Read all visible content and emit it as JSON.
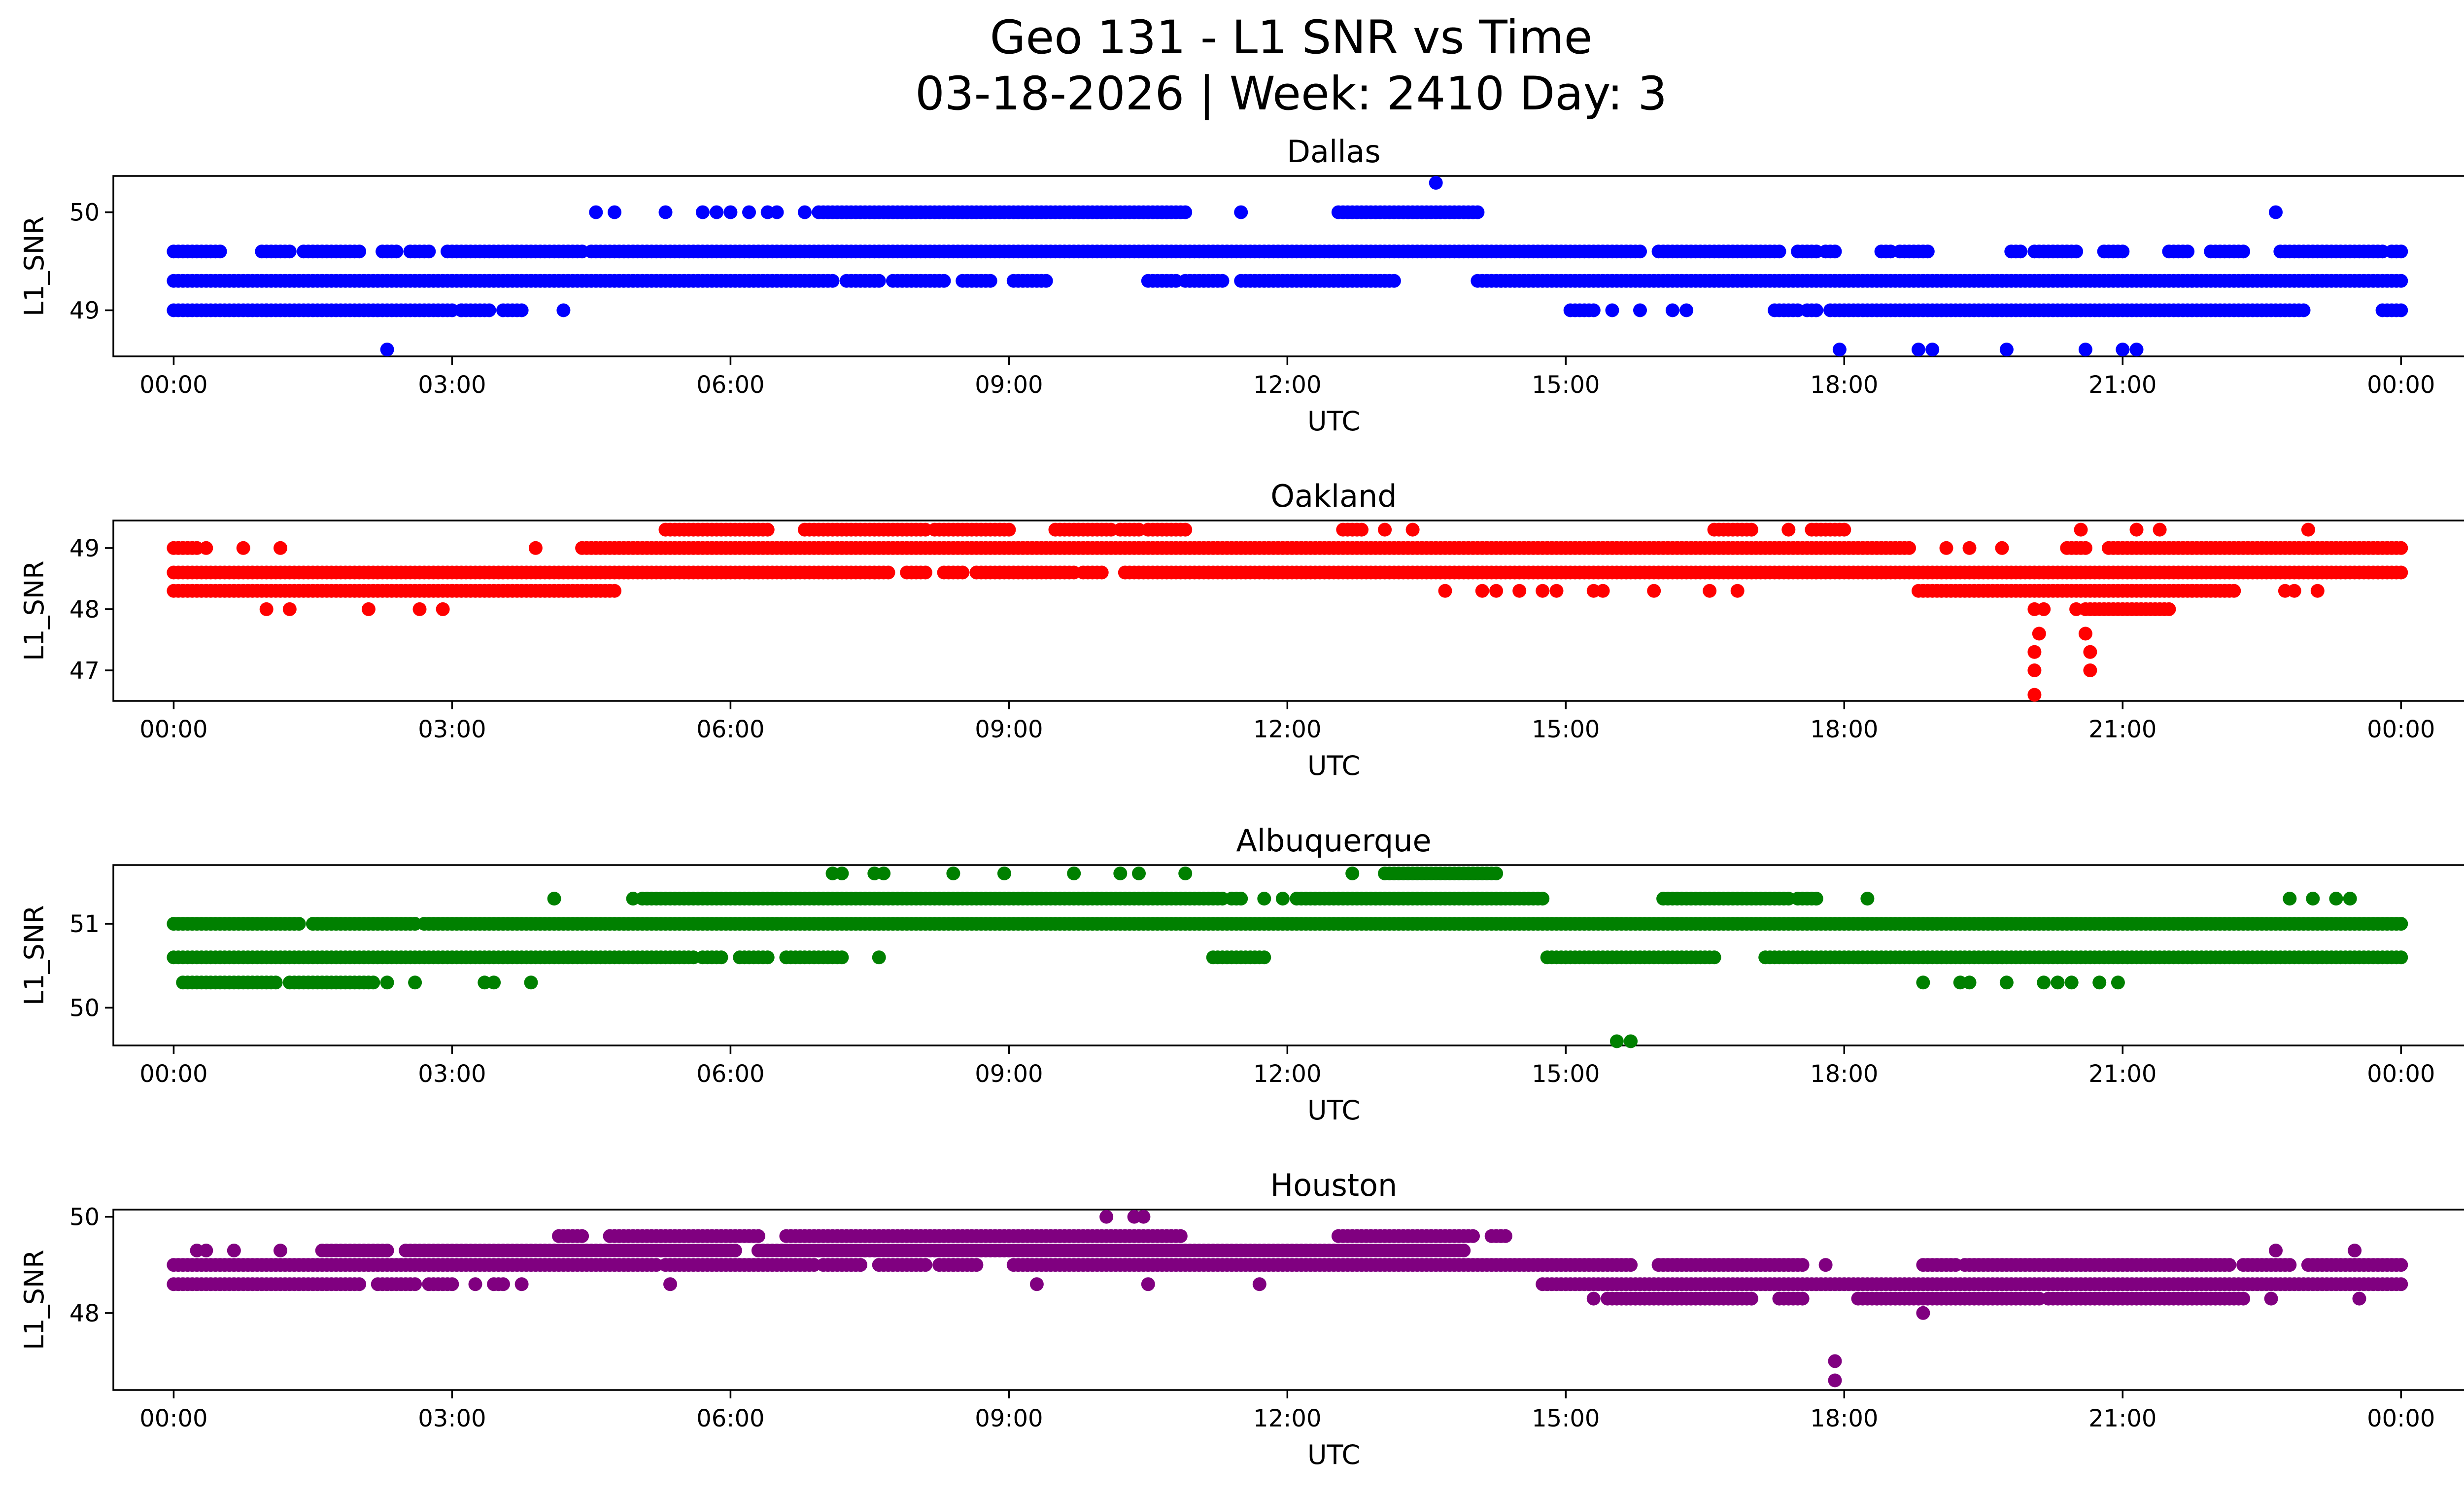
{
  "figure": {
    "title_line1": "Geo 131 - L1 SNR vs Time",
    "title_line2": "03-18-2026 | Week: 2410 Day: 3"
  },
  "chart_data": [
    {
      "type": "scatter",
      "title": "Dallas",
      "xlabel": "UTC",
      "ylabel": "L1_SNR",
      "color": "#0000ff",
      "x_ticks": [
        "00:00",
        "03:00",
        "06:00",
        "09:00",
        "12:00",
        "15:00",
        "18:00",
        "21:00",
        "00:00"
      ],
      "y_ticks": [
        49,
        50
      ],
      "xlim_hours": [
        -0.65,
        25.65
      ],
      "ylim": [
        48.53,
        50.37
      ],
      "series": [
        {
          "y": 49.6,
          "segments": [
            [
              0.0,
              0.5
            ],
            [
              0.95,
              1.25
            ],
            [
              1.4,
              2.0
            ],
            [
              2.25,
              2.4
            ],
            [
              2.55,
              2.75
            ],
            [
              2.95,
              4.4
            ],
            [
              4.5,
              15.8
            ],
            [
              16.0,
              17.3
            ],
            [
              17.5,
              17.7
            ],
            [
              17.8,
              17.9
            ],
            [
              18.4,
              18.5
            ],
            [
              18.6,
              18.9
            ],
            [
              19.8,
              19.9
            ],
            [
              20.05,
              20.3
            ],
            [
              20.35,
              20.5
            ],
            [
              20.8,
              21.0
            ],
            [
              21.5,
              21.7
            ],
            [
              21.95,
              22.3
            ],
            [
              22.7,
              23.8
            ],
            [
              23.9,
              24.0
            ]
          ]
        },
        {
          "y": 49.3,
          "segments": [
            [
              0.0,
              7.1
            ],
            [
              7.25,
              7.6
            ],
            [
              7.75,
              8.3
            ],
            [
              8.5,
              8.8
            ],
            [
              9.05,
              9.4
            ],
            [
              10.5,
              10.8
            ],
            [
              10.9,
              11.3
            ],
            [
              11.5,
              12.7
            ],
            [
              12.75,
              12.85
            ],
            [
              12.9,
              13.0
            ],
            [
              13.05,
              13.15
            ],
            [
              14.05,
              24.0
            ]
          ]
        },
        {
          "y": 49.0,
          "segments": [
            [
              0.0,
              3.0
            ],
            [
              3.1,
              3.4
            ],
            [
              3.55,
              3.7
            ],
            [
              15.05,
              15.3
            ],
            [
              17.25,
              17.5
            ],
            [
              17.6,
              17.7
            ],
            [
              17.85,
              22.9
            ],
            [
              23.8,
              24.0
            ]
          ]
        },
        {
          "y": 50.0,
          "segments": [
            [
              6.95,
              10.9
            ],
            [
              12.55,
              13.0
            ],
            [
              13.05,
              14.05
            ]
          ]
        }
      ],
      "points": [
        [
          1.0,
          49.0
        ],
        [
          3.75,
          49.0
        ],
        [
          4.2,
          49.0
        ],
        [
          3.1,
          49.0
        ],
        [
          15.5,
          49.0
        ],
        [
          15.8,
          49.0
        ],
        [
          16.15,
          49.0
        ],
        [
          16.3,
          49.0
        ],
        [
          22.95,
          49.0
        ],
        [
          4.55,
          50.0
        ],
        [
          4.75,
          50.0
        ],
        [
          5.3,
          50.0
        ],
        [
          5.7,
          50.0
        ],
        [
          5.85,
          50.0
        ],
        [
          6.0,
          50.0
        ],
        [
          6.2,
          50.0
        ],
        [
          6.4,
          50.0
        ],
        [
          6.5,
          50.0
        ],
        [
          6.8,
          50.0
        ],
        [
          11.5,
          50.0
        ],
        [
          22.65,
          50.0
        ],
        [
          13.6,
          50.3
        ],
        [
          2.3,
          48.6
        ],
        [
          17.95,
          48.6
        ],
        [
          18.8,
          48.6
        ],
        [
          18.95,
          48.6
        ],
        [
          19.75,
          48.6
        ],
        [
          20.6,
          48.6
        ],
        [
          21.0,
          48.6
        ],
        [
          21.15,
          48.6
        ]
      ]
    },
    {
      "type": "scatter",
      "title": "Oakland",
      "xlabel": "UTC",
      "ylabel": "L1_SNR",
      "color": "#ff0000",
      "x_ticks": [
        "00:00",
        "03:00",
        "06:00",
        "09:00",
        "12:00",
        "15:00",
        "18:00",
        "21:00",
        "00:00"
      ],
      "y_ticks": [
        47,
        48,
        49
      ],
      "xlim_hours": [
        -0.65,
        25.65
      ],
      "ylim": [
        46.5,
        49.45
      ],
      "series": [
        {
          "y": 48.6,
          "segments": [
            [
              0.0,
              7.7
            ],
            [
              7.9,
              8.1
            ],
            [
              8.3,
              8.5
            ],
            [
              8.65,
              9.2
            ],
            [
              9.25,
              9.7
            ],
            [
              9.8,
              10.0
            ],
            [
              10.25,
              24.0
            ]
          ]
        },
        {
          "y": 48.3,
          "segments": [
            [
              0.0,
              4.75
            ],
            [
              18.8,
              22.2
            ]
          ]
        },
        {
          "y": 49.0,
          "segments": [
            [
              0.0,
              0.25
            ],
            [
              4.4,
              18.7
            ],
            [
              20.4,
              20.6
            ],
            [
              20.85,
              24.0
            ]
          ]
        },
        {
          "y": 49.3,
          "segments": [
            [
              5.3,
              6.4
            ],
            [
              6.8,
              8.1
            ],
            [
              8.2,
              9.0
            ],
            [
              9.5,
              10.1
            ],
            [
              10.2,
              10.4
            ],
            [
              10.5,
              10.9
            ],
            [
              12.6,
              12.8
            ],
            [
              16.6,
              17.0
            ],
            [
              17.65,
              18.0
            ]
          ]
        },
        {
          "y": 48.0,
          "segments": [
            [
              20.6,
              21.5
            ]
          ]
        }
      ],
      "points": [
        [
          0.35,
          49.0
        ],
        [
          0.75,
          49.0
        ],
        [
          1.15,
          49.0
        ],
        [
          3.9,
          49.0
        ],
        [
          19.1,
          49.0
        ],
        [
          19.35,
          49.0
        ],
        [
          19.7,
          49.0
        ],
        [
          1.0,
          48.0
        ],
        [
          1.25,
          48.0
        ],
        [
          2.1,
          48.0
        ],
        [
          2.65,
          48.0
        ],
        [
          2.9,
          48.0
        ],
        [
          20.05,
          48.0
        ],
        [
          20.15,
          48.0
        ],
        [
          20.5,
          48.0
        ],
        [
          13.05,
          49.3
        ],
        [
          13.35,
          49.3
        ],
        [
          17.4,
          49.3
        ],
        [
          20.55,
          49.3
        ],
        [
          21.15,
          49.3
        ],
        [
          21.4,
          49.3
        ],
        [
          23.0,
          49.3
        ],
        [
          13.7,
          48.3
        ],
        [
          14.1,
          48.3
        ],
        [
          14.25,
          48.3
        ],
        [
          14.5,
          48.3
        ],
        [
          14.75,
          48.3
        ],
        [
          14.9,
          48.3
        ],
        [
          15.3,
          48.3
        ],
        [
          15.4,
          48.3
        ],
        [
          15.95,
          48.3
        ],
        [
          16.55,
          48.3
        ],
        [
          16.85,
          48.3
        ],
        [
          22.75,
          48.3
        ],
        [
          22.85,
          48.3
        ],
        [
          23.1,
          48.3
        ],
        [
          20.05,
          47.3
        ],
        [
          20.1,
          47.6
        ],
        [
          20.05,
          47.0
        ],
        [
          20.05,
          46.6
        ],
        [
          20.6,
          47.6
        ],
        [
          20.65,
          47.3
        ],
        [
          20.65,
          47.0
        ]
      ]
    },
    {
      "type": "scatter",
      "title": "Albuquerque",
      "xlabel": "UTC",
      "ylabel": "L1_SNR",
      "color": "#008000",
      "x_ticks": [
        "00:00",
        "03:00",
        "06:00",
        "09:00",
        "12:00",
        "15:00",
        "18:00",
        "21:00",
        "00:00"
      ],
      "y_ticks": [
        50,
        51
      ],
      "xlim_hours": [
        -0.65,
        25.65
      ],
      "ylim": [
        49.55,
        51.7
      ],
      "series": [
        {
          "y": 51.0,
          "segments": [
            [
              0.0,
              0.8
            ],
            [
              0.85,
              1.35
            ],
            [
              1.5,
              1.9
            ],
            [
              1.95,
              2.6
            ],
            [
              2.7,
              3.6
            ],
            [
              3.65,
              24.0
            ]
          ]
        },
        {
          "y": 50.6,
          "segments": [
            [
              0.0,
              5.6
            ],
            [
              5.7,
              5.9
            ],
            [
              6.1,
              6.4
            ],
            [
              6.6,
              6.95
            ],
            [
              7.0,
              7.2
            ],
            [
              11.2,
              11.5
            ],
            [
              11.55,
              11.75
            ],
            [
              14.8,
              16.6
            ],
            [
              17.15,
              24.0
            ]
          ]
        },
        {
          "y": 50.3,
          "segments": [
            [
              0.1,
              1.1
            ],
            [
              1.25,
              2.15
            ]
          ]
        },
        {
          "y": 51.3,
          "segments": [
            [
              5.05,
              11.3
            ],
            [
              11.4,
              11.5
            ],
            [
              12.1,
              14.75
            ],
            [
              16.05,
              17.4
            ],
            [
              17.5,
              17.7
            ]
          ]
        },
        {
          "y": 51.6,
          "segments": [
            [
              13.05,
              14.25
            ]
          ]
        }
      ],
      "points": [
        [
          2.3,
          50.3
        ],
        [
          2.6,
          50.3
        ],
        [
          3.35,
          50.3
        ],
        [
          3.45,
          50.3
        ],
        [
          3.85,
          50.3
        ],
        [
          18.85,
          50.3
        ],
        [
          19.25,
          50.3
        ],
        [
          19.35,
          50.3
        ],
        [
          19.75,
          50.3
        ],
        [
          20.15,
          50.3
        ],
        [
          20.3,
          50.3
        ],
        [
          20.45,
          50.3
        ],
        [
          20.75,
          50.3
        ],
        [
          20.95,
          50.3
        ],
        [
          4.1,
          51.3
        ],
        [
          4.95,
          51.3
        ],
        [
          11.75,
          51.3
        ],
        [
          11.95,
          51.3
        ],
        [
          18.25,
          51.3
        ],
        [
          22.8,
          51.3
        ],
        [
          23.05,
          51.3
        ],
        [
          23.3,
          51.3
        ],
        [
          23.45,
          51.3
        ],
        [
          7.1,
          51.6
        ],
        [
          7.2,
          51.6
        ],
        [
          7.55,
          51.6
        ],
        [
          7.65,
          51.6
        ],
        [
          8.4,
          51.6
        ],
        [
          8.95,
          51.6
        ],
        [
          9.7,
          51.6
        ],
        [
          10.2,
          51.6
        ],
        [
          10.4,
          51.6
        ],
        [
          10.9,
          51.6
        ],
        [
          12.7,
          51.6
        ],
        [
          7.6,
          50.6
        ],
        [
          15.55,
          49.6
        ],
        [
          15.7,
          49.6
        ]
      ]
    },
    {
      "type": "scatter",
      "title": "Houston",
      "xlabel": "UTC",
      "ylabel": "L1_SNR",
      "color": "#800080",
      "x_ticks": [
        "00:00",
        "03:00",
        "06:00",
        "09:00",
        "12:00",
        "15:00",
        "18:00",
        "21:00",
        "00:00"
      ],
      "y_ticks": [
        48,
        50
      ],
      "xlim_hours": [
        -0.65,
        25.65
      ],
      "ylim": [
        46.4,
        50.15
      ],
      "series": [
        {
          "y": 48.6,
          "segments": [
            [
              0.0,
              2.0
            ],
            [
              2.2,
              2.6
            ],
            [
              2.75,
              2.95
            ],
            [
              14.75,
              24.0
            ]
          ]
        },
        {
          "y": 49.0,
          "segments": [
            [
              0.0,
              5.2
            ],
            [
              5.3,
              6.9
            ],
            [
              7.0,
              7.4
            ],
            [
              7.6,
              8.1
            ],
            [
              8.25,
              8.65
            ],
            [
              9.05,
              12.1
            ],
            [
              12.2,
              13.2
            ],
            [
              13.25,
              14.75
            ],
            [
              14.8,
              15.7
            ],
            [
              16.0,
              17.55
            ],
            [
              18.9,
              19.2
            ],
            [
              19.3,
              22.15
            ],
            [
              22.3,
              22.8
            ],
            [
              23.0,
              24.0
            ]
          ]
        },
        {
          "y": 49.3,
          "segments": [
            [
              1.6,
              2.3
            ],
            [
              2.5,
              6.05
            ],
            [
              6.3,
              13.9
            ]
          ]
        },
        {
          "y": 49.6,
          "segments": [
            [
              4.15,
              4.4
            ],
            [
              4.7,
              6.3
            ],
            [
              6.6,
              10.85
            ],
            [
              12.55,
              14.0
            ],
            [
              14.2,
              14.35
            ]
          ]
        },
        {
          "y": 48.3,
          "segments": [
            [
              15.45,
              16.75
            ],
            [
              16.8,
              17.0
            ],
            [
              17.35,
              17.55
            ],
            [
              18.15,
              19.2
            ],
            [
              19.25,
              20.1
            ],
            [
              20.2,
              20.95
            ],
            [
              21.0,
              22.3
            ]
          ]
        }
      ],
      "points": [
        [
          0.25,
          49.3
        ],
        [
          0.35,
          49.3
        ],
        [
          0.65,
          49.3
        ],
        [
          1.15,
          49.3
        ],
        [
          9.3,
          48.6
        ],
        [
          11.7,
          48.6
        ],
        [
          3.0,
          48.6
        ],
        [
          3.25,
          48.6
        ],
        [
          3.45,
          48.6
        ],
        [
          3.5,
          48.6
        ],
        [
          3.55,
          48.6
        ],
        [
          3.75,
          48.6
        ],
        [
          5.35,
          48.6
        ],
        [
          10.5,
          48.6
        ],
        [
          7.4,
          49.0
        ],
        [
          8.4,
          49.0
        ],
        [
          8.6,
          49.0
        ],
        [
          9.2,
          49.0
        ],
        [
          12.15,
          49.0
        ],
        [
          18.85,
          49.0
        ],
        [
          15.3,
          48.3
        ],
        [
          17.3,
          48.3
        ],
        [
          22.6,
          48.3
        ],
        [
          23.55,
          48.3
        ],
        [
          16.2,
          49.0
        ],
        [
          17.8,
          49.0
        ],
        [
          10.05,
          50.0
        ],
        [
          10.35,
          50.0
        ],
        [
          10.45,
          50.0
        ],
        [
          22.65,
          49.3
        ],
        [
          23.5,
          49.3
        ],
        [
          18.85,
          48.0
        ],
        [
          17.9,
          47.0
        ],
        [
          17.9,
          46.6
        ]
      ]
    }
  ]
}
